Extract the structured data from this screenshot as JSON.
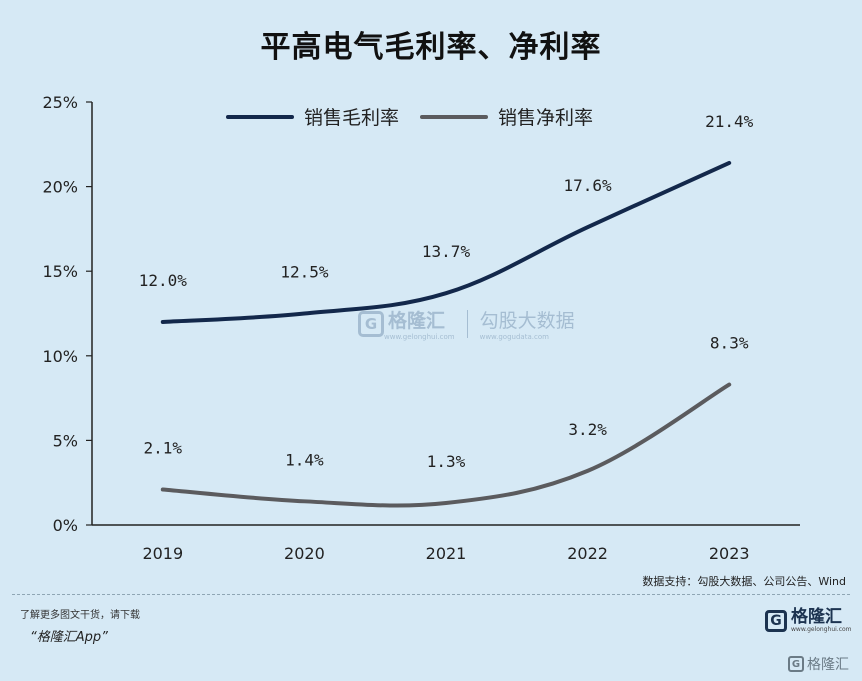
{
  "chart_data": {
    "type": "line",
    "title": "平高电气毛利率、净利率",
    "categories": [
      "2019",
      "2020",
      "2021",
      "2022",
      "2023"
    ],
    "yticks": [
      "0%",
      "5%",
      "10%",
      "15%",
      "20%",
      "25%"
    ],
    "ytick_values": [
      0,
      5,
      10,
      15,
      20,
      25
    ],
    "ylim": [
      0,
      25
    ],
    "legend_position": "top",
    "series": [
      {
        "name": "销售毛利率",
        "color": "#13284b",
        "values": [
          12.0,
          12.5,
          13.7,
          17.6,
          21.4
        ],
        "labels": [
          "12.0%",
          "12.5%",
          "13.7%",
          "17.6%",
          "21.4%"
        ]
      },
      {
        "name": "销售净利率",
        "color": "#5b5b5e",
        "values": [
          2.1,
          1.4,
          1.3,
          3.2,
          8.3
        ],
        "labels": [
          "2.1%",
          "1.4%",
          "1.3%",
          "3.2%",
          "8.3%"
        ]
      }
    ]
  },
  "source_note": "数据支持：勾股大数据、公司公告、Wind",
  "watermark": {
    "mark": "G",
    "name": "格隆汇",
    "site": "www.gelonghui.com",
    "name2": "勾股大数据",
    "site2": "www.gogudata.com"
  },
  "footer": {
    "promo": "了解更多图文干货，请下载",
    "app_name": "“格隆汇App”",
    "brand_mark": "G",
    "brand_name": "格隆汇",
    "brand_url": "www.gelonghui.com",
    "corner_mark": "G",
    "corner_text": "格隆汇"
  }
}
